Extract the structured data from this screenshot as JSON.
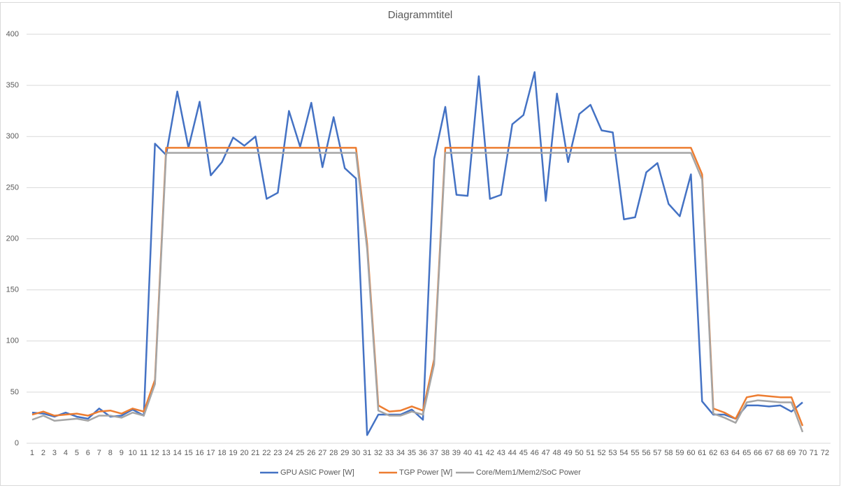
{
  "chart_data": {
    "type": "line",
    "title": "Diagrammtitel",
    "categories": [
      1,
      2,
      3,
      4,
      5,
      6,
      7,
      8,
      9,
      10,
      11,
      12,
      13,
      14,
      15,
      16,
      17,
      18,
      19,
      20,
      21,
      22,
      23,
      24,
      25,
      26,
      27,
      28,
      29,
      30,
      31,
      32,
      33,
      34,
      35,
      36,
      37,
      38,
      39,
      40,
      41,
      42,
      43,
      44,
      45,
      46,
      47,
      48,
      49,
      50,
      51,
      52,
      53,
      54,
      55,
      56,
      57,
      58,
      59,
      60,
      61,
      62,
      63,
      64,
      65,
      66,
      67,
      68,
      69,
      70,
      71,
      72
    ],
    "series": [
      {
        "name": "GPU ASIC Power [W]",
        "color": "#4472c4",
        "values": [
          30,
          29,
          26,
          30,
          26,
          24,
          34,
          26,
          27,
          33,
          27,
          293,
          282,
          344,
          289,
          334,
          262,
          275,
          299,
          291,
          300,
          239,
          245,
          325,
          290,
          333,
          270,
          319,
          269,
          259,
          8,
          28,
          28,
          28,
          33,
          23,
          278,
          329,
          243,
          242,
          359,
          239,
          243,
          312,
          321,
          363,
          237,
          342,
          275,
          322,
          331,
          306,
          304,
          219,
          221,
          265,
          274,
          234,
          222,
          263,
          41,
          28,
          28,
          24,
          37,
          37,
          36,
          37,
          31,
          40,
          null,
          null
        ]
      },
      {
        "name": "TGP Power [W]",
        "color": "#ed7d31",
        "values": [
          28,
          31,
          27,
          28,
          29,
          27,
          31,
          32,
          29,
          34,
          31,
          62,
          289,
          289,
          289,
          289,
          289,
          289,
          289,
          289,
          289,
          289,
          289,
          289,
          289,
          289,
          289,
          289,
          289,
          289,
          195,
          37,
          31,
          32,
          36,
          32,
          82,
          289,
          289,
          289,
          289,
          289,
          289,
          289,
          289,
          289,
          289,
          289,
          289,
          289,
          289,
          289,
          289,
          289,
          289,
          289,
          289,
          289,
          289,
          289,
          263,
          34,
          30,
          24,
          45,
          47,
          46,
          45,
          45,
          17,
          null,
          null
        ]
      },
      {
        "name": "Core/Mem1/Mem2/SoC Power",
        "color": "#a5a5a5",
        "values": [
          23,
          27,
          22,
          23,
          24,
          22,
          27,
          27,
          25,
          30,
          27,
          58,
          284,
          284,
          284,
          284,
          284,
          284,
          284,
          284,
          284,
          284,
          284,
          284,
          284,
          284,
          284,
          284,
          284,
          284,
          190,
          32,
          27,
          27,
          31,
          28,
          77,
          284,
          284,
          284,
          284,
          284,
          284,
          284,
          284,
          284,
          284,
          284,
          284,
          284,
          284,
          284,
          284,
          284,
          284,
          284,
          284,
          284,
          284,
          284,
          258,
          29,
          25,
          20,
          40,
          42,
          41,
          40,
          40,
          11,
          null,
          null
        ]
      }
    ],
    "ylim": [
      0,
      400
    ],
    "yticks": [
      0,
      50,
      100,
      150,
      200,
      250,
      300,
      350,
      400
    ],
    "grid": true,
    "legend": "bottom"
  }
}
